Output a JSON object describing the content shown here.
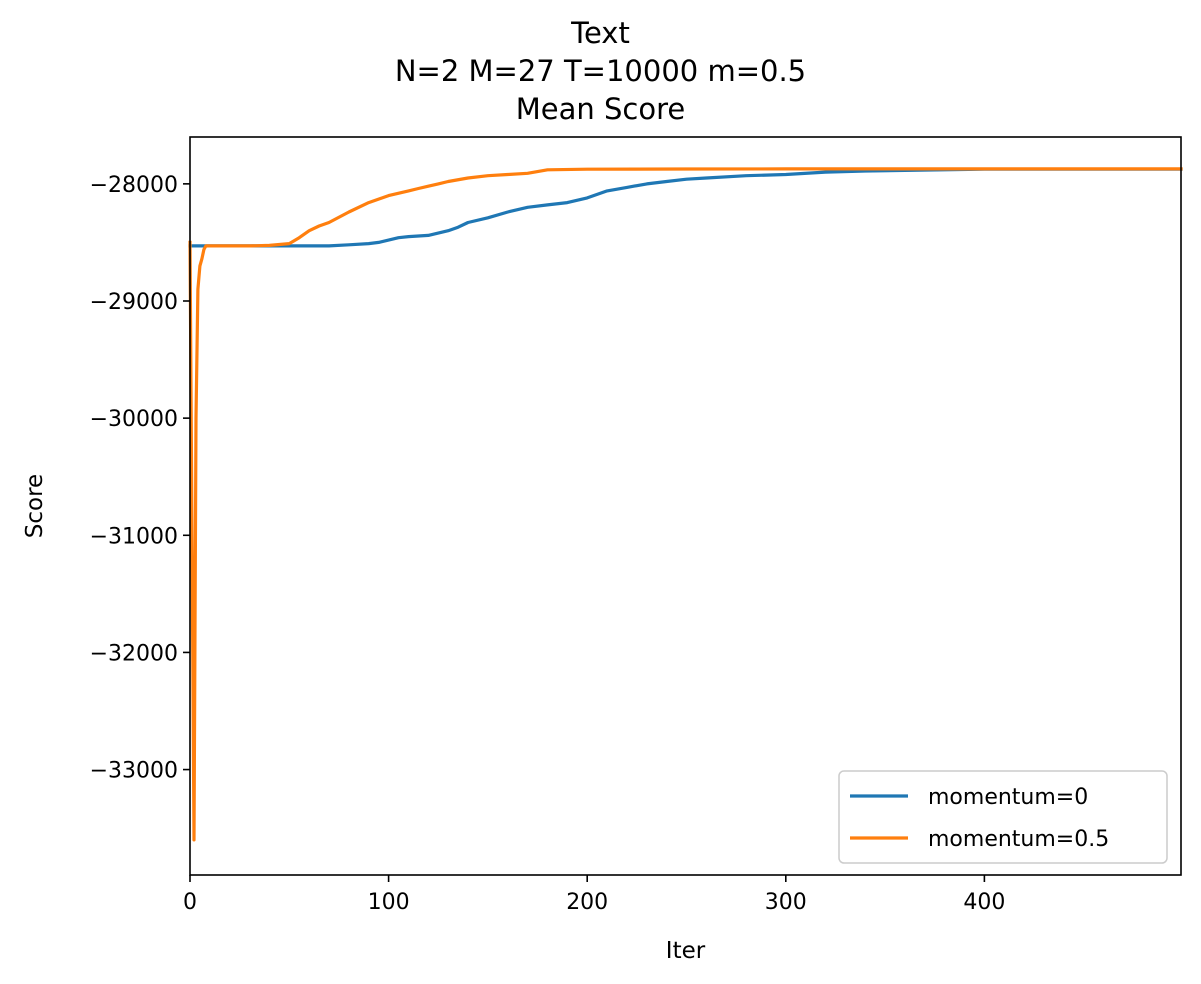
{
  "chart_data": {
    "type": "line",
    "title_lines": [
      "Text",
      "N=2 M=27 T=10000 m=0.5",
      "Mean Score"
    ],
    "xlabel": "Iter",
    "ylabel": "Score",
    "xlim": [
      0,
      499
    ],
    "ylim": [
      -33900,
      -27600
    ],
    "xticks": [
      0,
      100,
      200,
      300,
      400
    ],
    "xtick_labels": [
      "0",
      "100",
      "200",
      "300",
      "400"
    ],
    "yticks": [
      -28000,
      -29000,
      -30000,
      -31000,
      -32000,
      -33000
    ],
    "ytick_labels": [
      "−28000",
      "−29000",
      "−30000",
      "−31000",
      "−32000",
      "−33000"
    ],
    "grid": false,
    "legend_position": "lower right",
    "series": [
      {
        "name": "momentum=0",
        "color": "#1f77b4",
        "x": [
          0,
          10,
          20,
          30,
          40,
          50,
          60,
          70,
          80,
          90,
          95,
          100,
          105,
          110,
          120,
          130,
          135,
          140,
          150,
          160,
          170,
          180,
          190,
          200,
          210,
          220,
          230,
          240,
          250,
          260,
          280,
          300,
          320,
          340,
          360,
          380,
          400,
          450,
          499
        ],
        "y": [
          -28530,
          -28530,
          -28530,
          -28530,
          -28530,
          -28530,
          -28530,
          -28530,
          -28520,
          -28510,
          -28500,
          -28480,
          -28460,
          -28450,
          -28440,
          -28400,
          -28370,
          -28330,
          -28290,
          -28240,
          -28200,
          -28180,
          -28160,
          -28120,
          -28060,
          -28030,
          -28000,
          -27980,
          -27960,
          -27950,
          -27930,
          -27920,
          -27900,
          -27890,
          -27885,
          -27880,
          -27875,
          -27875,
          -27875
        ]
      },
      {
        "name": "momentum=0.5",
        "color": "#ff7f0e",
        "x": [
          0,
          1,
          2,
          3,
          4,
          5,
          6,
          7,
          8,
          10,
          20,
          30,
          40,
          50,
          55,
          60,
          65,
          70,
          80,
          90,
          100,
          110,
          115,
          120,
          125,
          130,
          140,
          150,
          160,
          170,
          180,
          200,
          250,
          300,
          350,
          400,
          450,
          499
        ],
        "y": [
          -28500,
          -31000,
          -33600,
          -30000,
          -28900,
          -28700,
          -28640,
          -28560,
          -28530,
          -28530,
          -28530,
          -28530,
          -28525,
          -28510,
          -28460,
          -28400,
          -28360,
          -28330,
          -28240,
          -28160,
          -28100,
          -28060,
          -28040,
          -28020,
          -28000,
          -27980,
          -27950,
          -27930,
          -27920,
          -27910,
          -27880,
          -27875,
          -27873,
          -27872,
          -27872,
          -27872,
          -27872,
          -27872
        ]
      }
    ]
  }
}
